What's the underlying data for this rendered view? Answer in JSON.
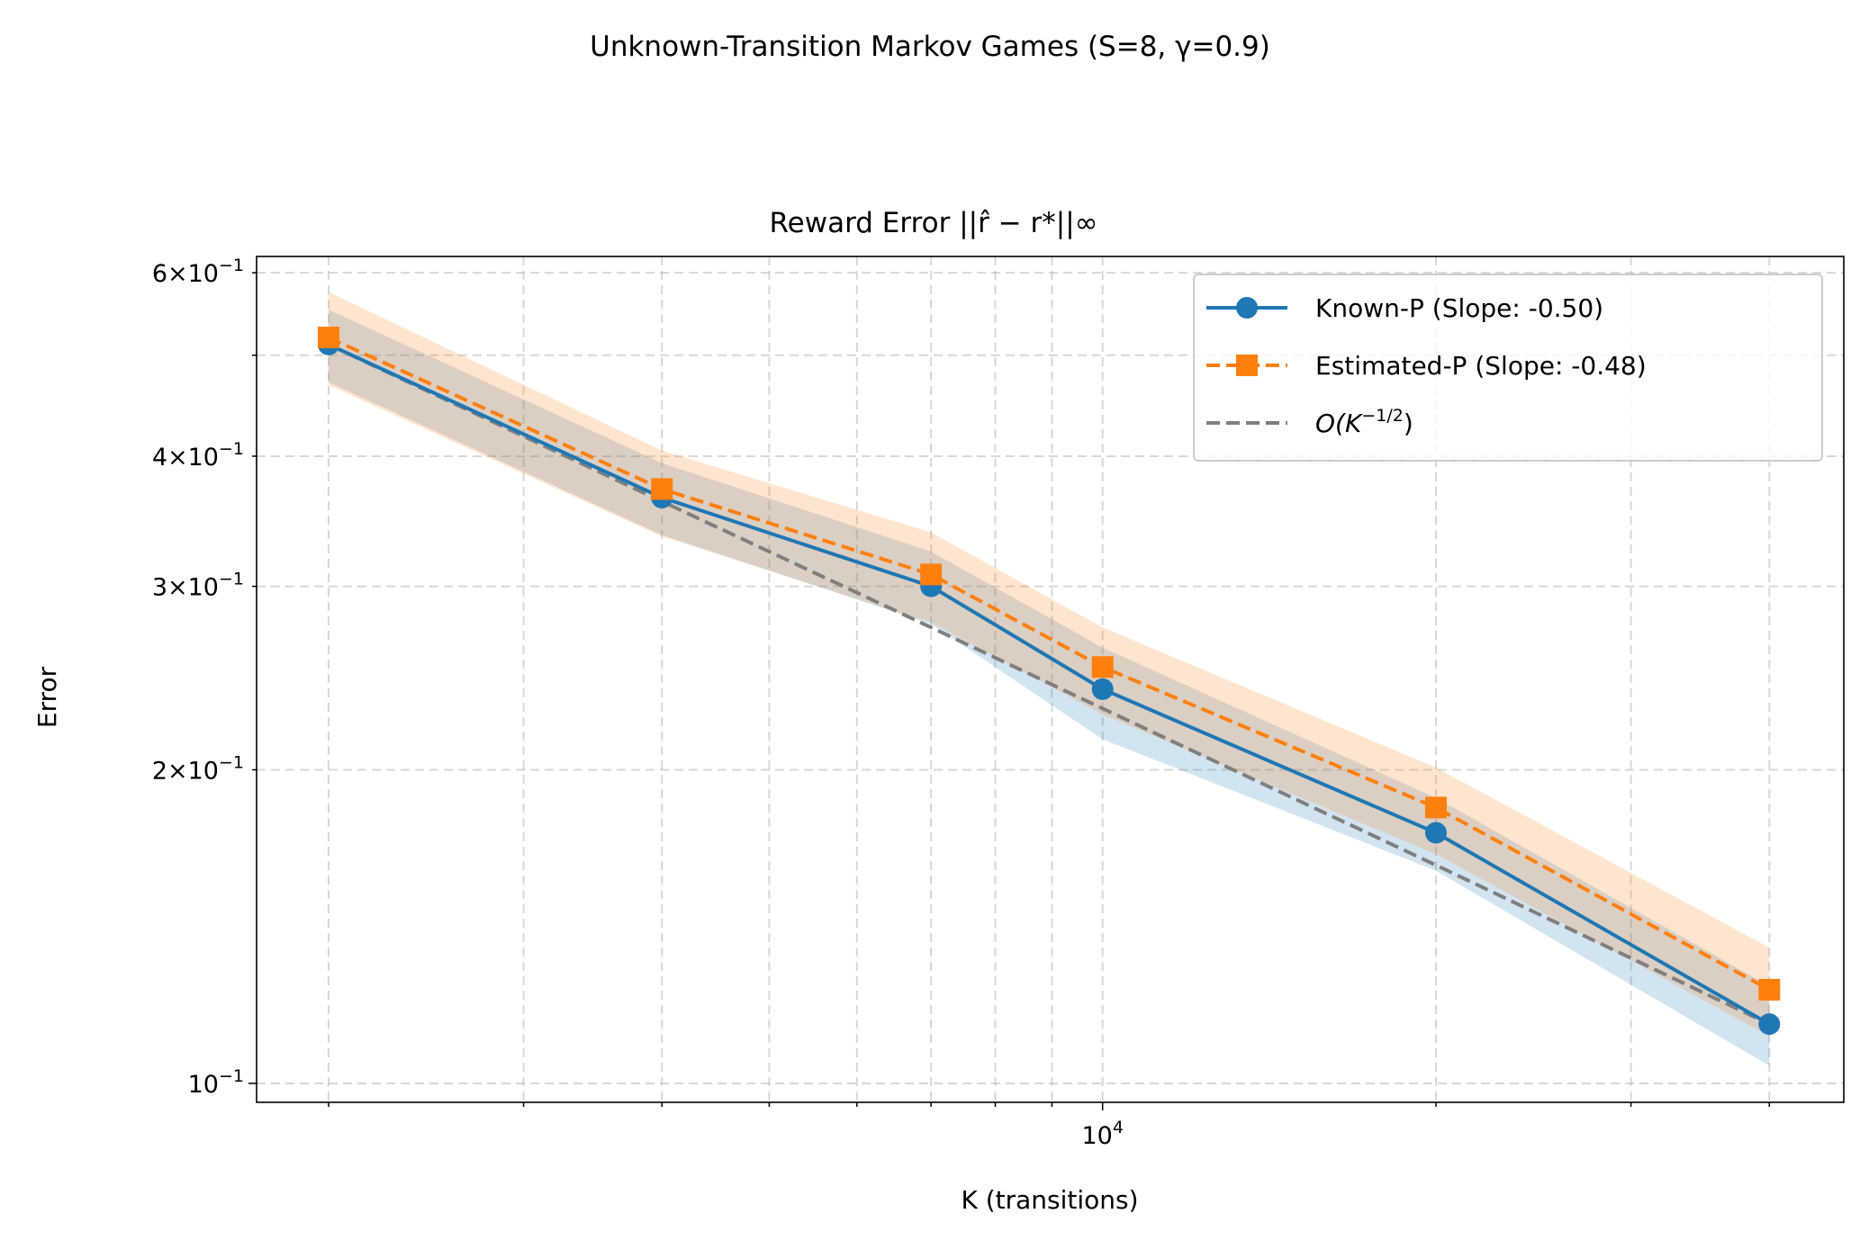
{
  "suptitle": "Unknown-Transition Markov Games (S=8, γ=0.9)",
  "chart_data": {
    "type": "line",
    "title": "Reward Error ||r̂ − r*||∞",
    "xlabel": "K (transitions)",
    "ylabel": "Error",
    "xscale": "log",
    "yscale": "log",
    "xlim": [
      1722,
      46700
    ],
    "ylim": [
      0.0959,
      0.622
    ],
    "grid": true,
    "legend_position": "top-right",
    "x": [
      2000,
      4000,
      7000,
      10000,
      20000,
      40000
    ],
    "x_tick_labels": [
      {
        "value": 10000,
        "base": "10",
        "exp": "4"
      }
    ],
    "y_tick_labels": [
      {
        "value": 0.6,
        "mant": "6",
        "exp": "−1"
      },
      {
        "value": 0.4,
        "mant": "4",
        "exp": "−1"
      },
      {
        "value": 0.3,
        "mant": "3",
        "exp": "−1"
      },
      {
        "value": 0.2,
        "mant": "2",
        "exp": "−1"
      },
      {
        "value": 0.1,
        "mant": "",
        "exp": "−1"
      }
    ],
    "series": [
      {
        "name": "Known-P (Slope: -0.50)",
        "color": "#1f77b4",
        "marker": "circle",
        "linestyle": "solid",
        "values": [
          0.512,
          0.365,
          0.3,
          0.239,
          0.174,
          0.114
        ],
        "lower": [
          0.471,
          0.336,
          0.276,
          0.214,
          0.16,
          0.104
        ],
        "upper": [
          0.553,
          0.394,
          0.324,
          0.262,
          0.188,
          0.124
        ]
      },
      {
        "name": "Estimated-P (Slope: -0.48)",
        "color": "#ff7f0e",
        "marker": "square",
        "linestyle": "dashed",
        "values": [
          0.52,
          0.372,
          0.308,
          0.251,
          0.184,
          0.123
        ],
        "lower": [
          0.468,
          0.335,
          0.277,
          0.226,
          0.166,
          0.111
        ],
        "upper": [
          0.575,
          0.405,
          0.338,
          0.274,
          0.201,
          0.135
        ]
      },
      {
        "name": "O(K^{-1/2})",
        "color": "#7f7f7f",
        "marker": "none",
        "linestyle": "dashed",
        "values": [
          0.512,
          0.362,
          0.274,
          0.229,
          0.162,
          0.114
        ]
      }
    ],
    "legend": [
      {
        "pre": "Known-P (Slope: -0.50)"
      },
      {
        "pre": "Estimated-P (Slope: -0.48)"
      },
      {
        "pre": "O(K",
        "sup": "−1/2",
        "post": ")"
      }
    ]
  }
}
